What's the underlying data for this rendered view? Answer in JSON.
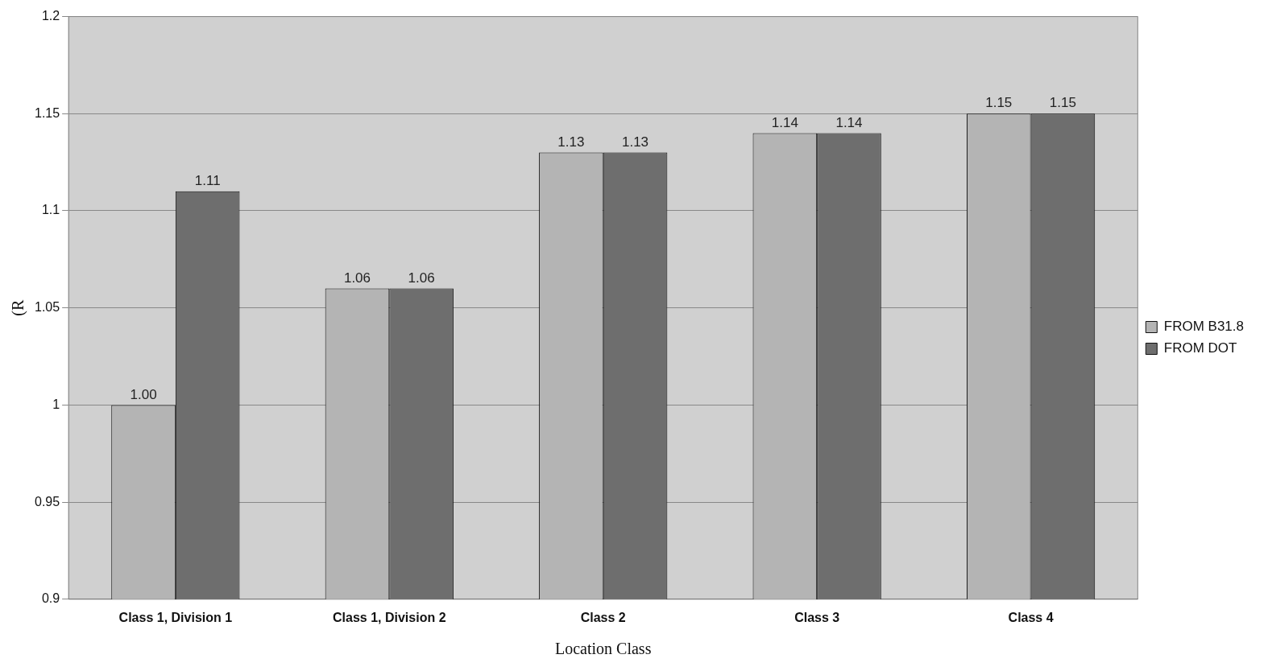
{
  "chart_data": {
    "type": "bar",
    "xlabel": "Location Class",
    "ylabel": "(R",
    "categories": [
      "Class 1, Division 1",
      "Class 1, Division 2",
      "Class 2",
      "Class 3",
      "Class 4"
    ],
    "series": [
      {
        "name": "FROM B31.8",
        "color": "#b4b4b4",
        "values": [
          1.0,
          1.06,
          1.13,
          1.14,
          1.15
        ],
        "value_labels": [
          "1.00",
          "1.06",
          "1.13",
          "1.14",
          "1.15"
        ]
      },
      {
        "name": "FROM DOT",
        "color": "#6e6e6e",
        "values": [
          1.11,
          1.06,
          1.13,
          1.14,
          1.15
        ],
        "value_labels": [
          "1.11",
          "1.06",
          "1.13",
          "1.14",
          "1.15"
        ]
      }
    ],
    "ylim": [
      0.9,
      1.2
    ],
    "yticks": [
      0.9,
      0.95,
      1,
      1.05,
      1.1,
      1.15,
      1.2
    ],
    "grid": "y",
    "legend": "right"
  }
}
